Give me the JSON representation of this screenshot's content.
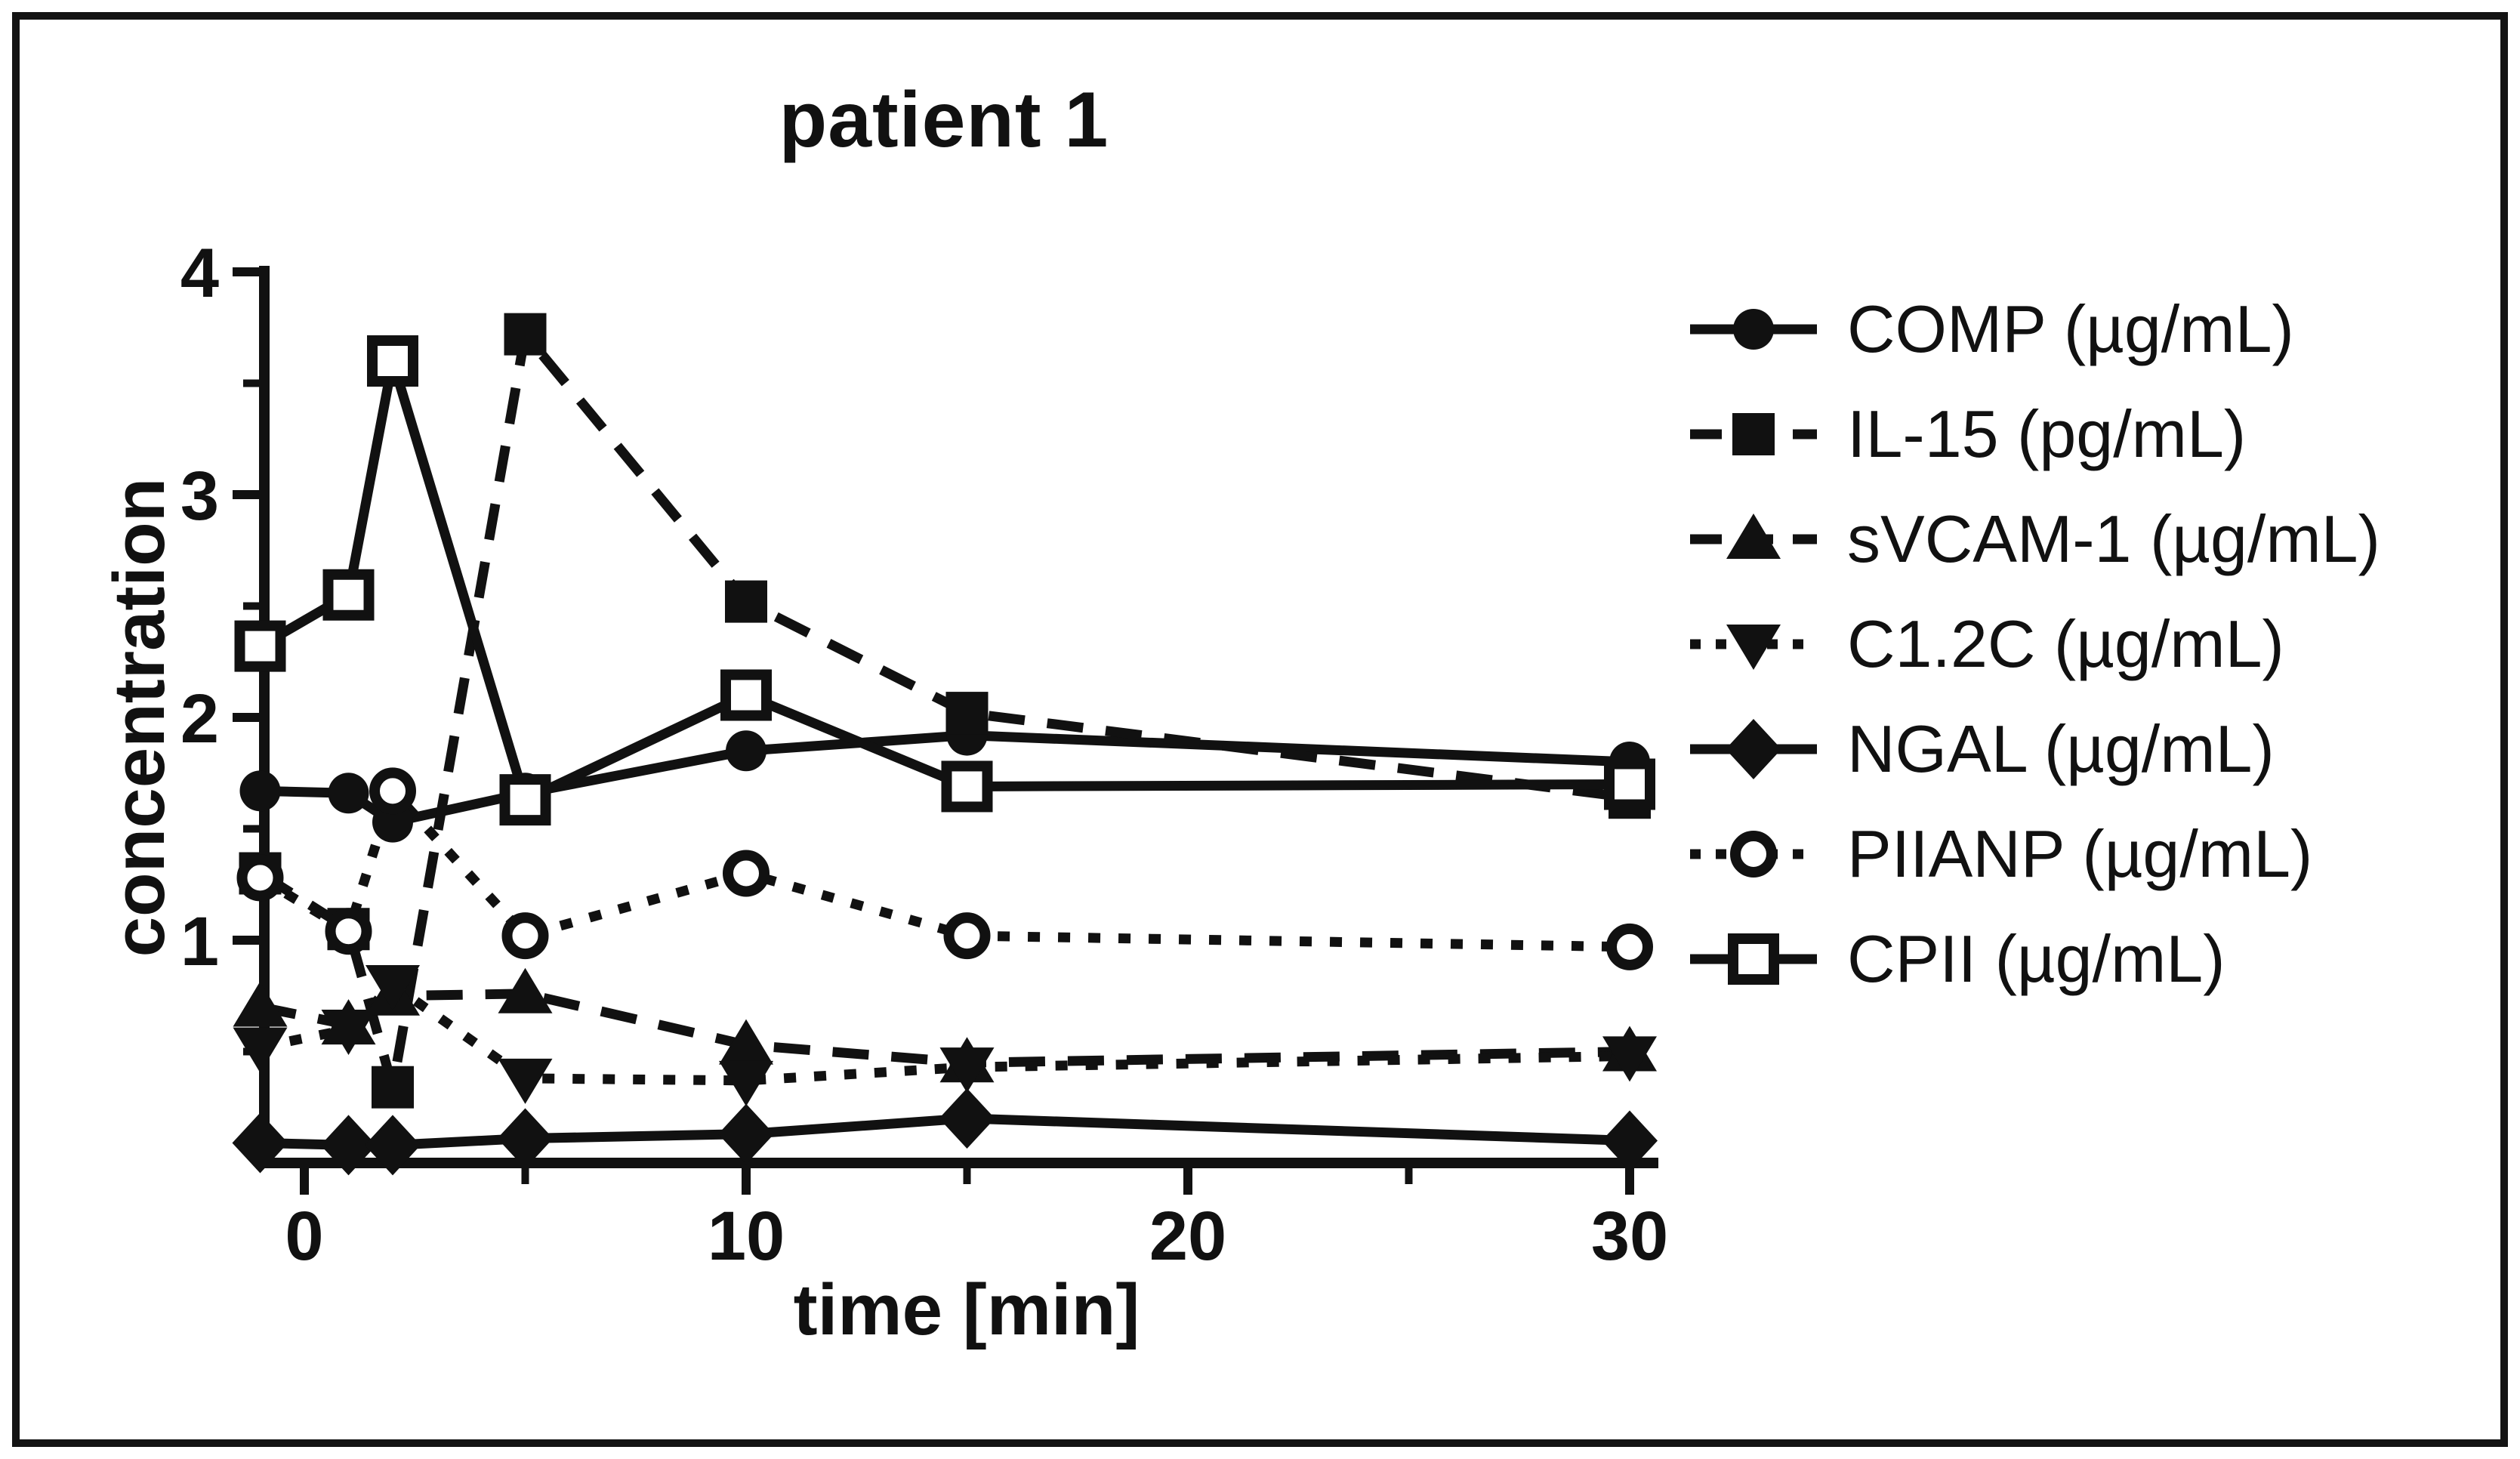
{
  "frame": {
    "border_color": "#141414",
    "background": "#ffffff",
    "ink_color": "#111111"
  },
  "chart": {
    "title": "patient 1",
    "x_label": "time [min]",
    "y_label": "concentration"
  },
  "chart_data": {
    "type": "line",
    "title": "patient 1",
    "xlabel": "time [min]",
    "ylabel": "concentration",
    "grid": false,
    "legend_position": "right",
    "x": [
      -1,
      1,
      2,
      5,
      10,
      15,
      30
    ],
    "xlim": [
      -1.9,
      31.5
    ],
    "ylim": [
      0,
      4
    ],
    "x_major_ticks": [
      0,
      10,
      20,
      30
    ],
    "x_minor_ticks": [
      5,
      15,
      25
    ],
    "y_major_ticks": [
      1,
      2,
      3,
      4
    ],
    "y_minor_ticks": [
      0.5,
      1.5,
      2.5,
      3.5
    ],
    "series": [
      {
        "id": "comp",
        "name": "COMP (µg/mL)",
        "marker": "circle-filled",
        "line": "solid",
        "values": [
          1.67,
          1.66,
          1.53,
          1.66,
          1.85,
          1.92,
          1.8
        ]
      },
      {
        "id": "il15",
        "name": "IL-15 (pg/mL)",
        "marker": "square-filled",
        "line": "dashed",
        "values": [
          1.3,
          1.05,
          0.34,
          3.72,
          2.52,
          2.02,
          1.64
        ]
      },
      {
        "id": "svcam1",
        "name": "sVCAM-1 (µg/mL)",
        "marker": "triangle-up-filled",
        "line": "dashed",
        "values": [
          0.7,
          0.62,
          0.75,
          0.76,
          0.53,
          0.45,
          0.5
        ]
      },
      {
        "id": "c12c",
        "name": "C1.2C (µg/mL)",
        "marker": "triangle-down-filled",
        "line": "dotted",
        "values": [
          0.52,
          0.6,
          0.8,
          0.38,
          0.37,
          0.43,
          0.48
        ]
      },
      {
        "id": "ngal",
        "name": "NGAL (µg/mL)",
        "marker": "diamond-filled",
        "line": "solid",
        "values": [
          0.09,
          0.08,
          0.08,
          0.11,
          0.13,
          0.2,
          0.1
        ]
      },
      {
        "id": "piianp",
        "name": "PIIANP (µg/mL)",
        "marker": "circle-open",
        "line": "dotted",
        "values": [
          1.28,
          1.04,
          1.67,
          1.02,
          1.3,
          1.02,
          0.97
        ]
      },
      {
        "id": "cpii",
        "name": "CPII (µg/mL)",
        "marker": "square-open",
        "line": "solid",
        "values": [
          2.32,
          2.55,
          3.6,
          1.63,
          2.1,
          1.69,
          1.7
        ]
      }
    ]
  }
}
